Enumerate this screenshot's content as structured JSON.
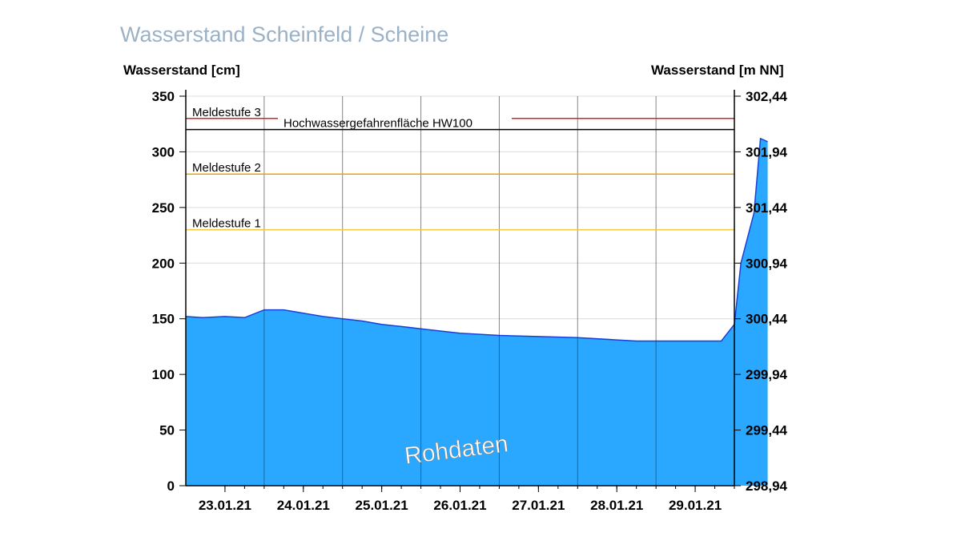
{
  "chart_data": {
    "type": "area",
    "title": "Wasserstand Scheinfeld / Scheine",
    "ylabel_left": "Wasserstand [cm]",
    "ylabel_right": "Wasserstand [m NN]",
    "ylim": [
      0,
      350
    ],
    "xlim": [
      "2021-01-22T12:00",
      "2021-01-29T12:00"
    ],
    "grid": true,
    "fill_color": "#2aa8ff",
    "line_color": "#1a3fd6",
    "yticks_left": [
      "0",
      "50",
      "100",
      "150",
      "200",
      "250",
      "300",
      "350"
    ],
    "yticks_right": [
      "298,94",
      "299,44",
      "299,94",
      "300,44",
      "300,94",
      "301,44",
      "301,94",
      "302,44"
    ],
    "xticks": [
      "23.01.21",
      "24.01.21",
      "25.01.21",
      "26.01.21",
      "27.01.21",
      "28.01.21",
      "29.01.21"
    ],
    "thresholds": [
      {
        "label": "Meldestufe 3",
        "value": 330,
        "color": "#e02020"
      },
      {
        "label": "Hochwassergefahrenfläche HW100",
        "value": 320,
        "color": "#000000"
      },
      {
        "label": "Meldestufe 2",
        "value": 280,
        "color": "#f0a000"
      },
      {
        "label": "Meldestufe 1",
        "value": 230,
        "color": "#f5c842"
      }
    ],
    "series": [
      {
        "x": [
          "2021-01-22T12:00",
          "2021-01-22T17:00",
          "2021-01-23T00:00",
          "2021-01-23T06:00",
          "2021-01-23T12:00",
          "2021-01-23T18:00",
          "2021-01-24T00:00",
          "2021-01-24T06:00",
          "2021-01-24T12:00",
          "2021-01-24T18:00",
          "2021-01-25T00:00",
          "2021-01-25T06:00",
          "2021-01-25T12:00",
          "2021-01-25T18:00",
          "2021-01-26T00:00",
          "2021-01-26T12:00",
          "2021-01-27T00:00",
          "2021-01-27T12:00",
          "2021-01-28T00:00",
          "2021-01-28T06:00",
          "2021-01-28T09:00",
          "2021-01-28T13:00",
          "2021-01-28T17:00",
          "2021-01-28T23:00",
          "2021-01-29T04:00",
          "2021-01-29T08:00",
          "2021-01-29T12:00",
          "2021-01-29T14:00",
          "2021-01-29T18:00",
          "2021-01-29T20:00"
        ],
        "values": [
          152,
          151,
          152,
          151,
          158,
          158,
          155,
          152,
          150,
          148,
          145,
          143,
          141,
          139,
          137,
          135,
          134,
          133,
          131,
          130,
          130,
          130,
          130,
          130,
          130,
          130,
          145,
          200,
          245,
          312
        ]
      }
    ],
    "annotation": "Rohdaten"
  }
}
